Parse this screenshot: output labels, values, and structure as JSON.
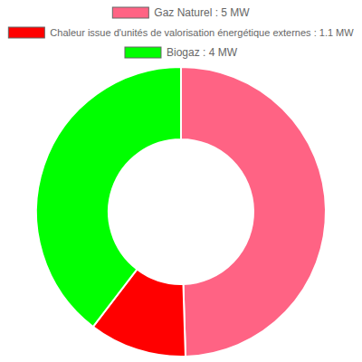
{
  "chart_data": {
    "type": "doughnut",
    "categories": [
      "Gaz Naturel : 5 MW",
      "Chaleur issue d'unités de valorisation énergétique externes : 1.1 MW",
      "Biogaz : 4 MW"
    ],
    "values": [
      5,
      1.1,
      4
    ],
    "colors": [
      "#ff6384",
      "#ff0000",
      "#00ff00"
    ],
    "legend": "top"
  }
}
